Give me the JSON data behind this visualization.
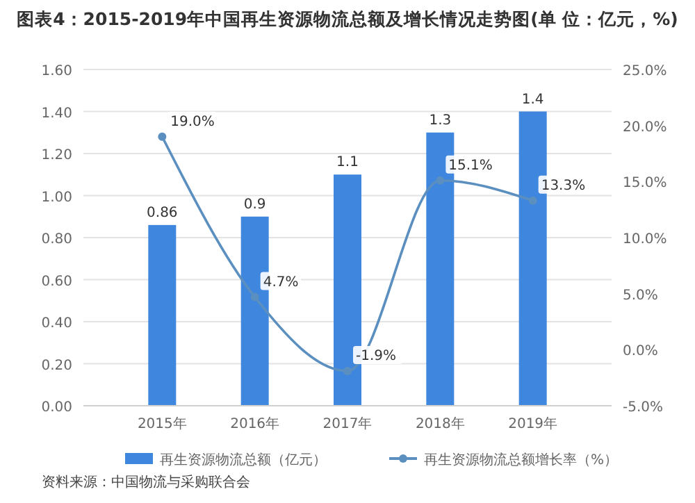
{
  "chart_data": {
    "type": "bar",
    "title": "图表4：2015-2019年中国再生资源物流总额及增长情况走势图(单 位：亿元，%)",
    "categories": [
      "2015年",
      "2016年",
      "2017年",
      "2018年",
      "2019年"
    ],
    "series": [
      {
        "name": "再生资源物流总额（亿元）",
        "color": "#3f86de",
        "values": [
          0.86,
          0.9,
          1.1,
          1.3,
          1.4
        ],
        "value_labels": [
          "0.86",
          "0.9",
          "1.1",
          "1.3",
          "1.4"
        ]
      },
      {
        "name": "再生资源物流总额增长率（%）",
        "type": "line",
        "axis": "y2",
        "color": "#5b8fc0",
        "values": [
          19.0,
          4.7,
          -1.9,
          15.1,
          13.3
        ],
        "value_labels": [
          "19.0%",
          "4.7%",
          "-1.9%",
          "15.1%",
          "13.3%"
        ]
      }
    ],
    "ylim": [
      0,
      1.6
    ],
    "yticks": [
      {
        "value": 0,
        "label": "0.00"
      },
      {
        "value": 0.2,
        "label": "0.20"
      },
      {
        "value": 0.4,
        "label": "0.40"
      },
      {
        "value": 0.6,
        "label": "0.60"
      },
      {
        "value": 0.8,
        "label": "0.80"
      },
      {
        "value": 1,
        "label": "1.00"
      },
      {
        "value": 1.2,
        "label": "1.20"
      },
      {
        "value": 1.4,
        "label": "1.40"
      },
      {
        "value": 1.6,
        "label": "1.60"
      }
    ],
    "y2lim": [
      -5,
      25
    ],
    "y2ticks": [
      {
        "value": -5,
        "label": "-5.0%"
      },
      {
        "value": 0,
        "label": "0.0%"
      },
      {
        "value": 5,
        "label": "5.0%"
      },
      {
        "value": 10,
        "label": "10.0%"
      },
      {
        "value": 15,
        "label": "15.0%"
      },
      {
        "value": 20,
        "label": "20.0%"
      },
      {
        "value": 25,
        "label": "25.0%"
      }
    ],
    "grid": "y",
    "legend": "bottom",
    "marker": "circle",
    "annotations": [
      "资料来源：中国物流与采购联合会"
    ]
  }
}
